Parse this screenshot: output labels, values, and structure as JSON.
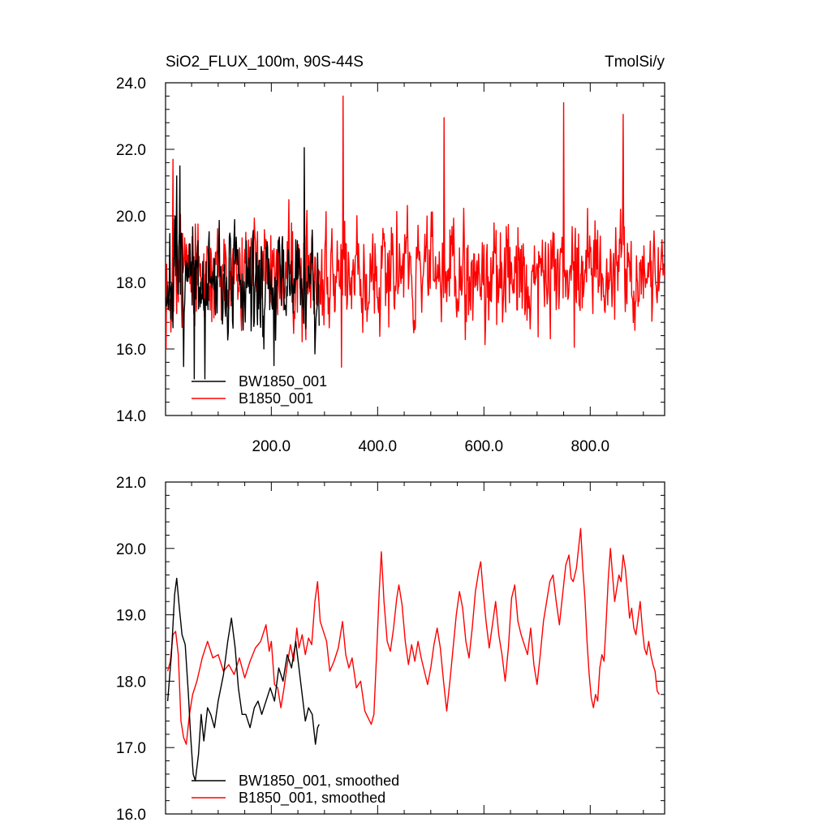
{
  "chart_data": [
    {
      "type": "line",
      "title": "SiO2_FLUX_100m, 90S-44S",
      "units": "TmolSi/y",
      "xlabel": "",
      "ylabel": "",
      "xlim": [
        1,
        940
      ],
      "ylim": [
        14.0,
        24.0
      ],
      "x_tick_labels": [
        "200.0",
        "400.0",
        "600.0",
        "800.0"
      ],
      "y_tick_labels": [
        "14.0",
        "16.0",
        "18.0",
        "20.0",
        "22.0",
        "24.0"
      ],
      "legend_position": "bottom-left",
      "series": [
        {
          "name": "BW1850_001",
          "color": "#000000",
          "x_start": 1,
          "x_end": 290,
          "mean": 17.9,
          "std": 1.05,
          "seed": 7,
          "highlights": [
            [
              22,
              21.2
            ],
            [
              28,
              21.5
            ],
            [
              55,
              15.1
            ],
            [
              75,
              15.1
            ],
            [
              205,
              15.5
            ],
            [
              262,
              22.05
            ]
          ]
        },
        {
          "name": "B1850_001",
          "color": "#ff0000",
          "x_start": 1,
          "x_end": 940,
          "mean": 18.3,
          "std": 1.0,
          "seed": 13,
          "highlights": [
            [
              15,
              21.7
            ],
            [
              335,
              23.6
            ],
            [
              332,
              15.45
            ],
            [
              525,
              22.95
            ],
            [
              750,
              23.4
            ],
            [
              770,
              16.05
            ],
            [
              862,
              23.05
            ]
          ]
        }
      ]
    },
    {
      "type": "line",
      "title": "",
      "xlabel": "",
      "ylabel": "",
      "xlim": [
        1,
        940
      ],
      "ylim": [
        16.0,
        21.0
      ],
      "x_tick_labels": [],
      "y_tick_labels": [
        "16.0",
        "17.0",
        "18.0",
        "19.0",
        "20.0",
        "21.0"
      ],
      "legend_position": "bottom-left",
      "series": [
        {
          "name": "BW1850_001, smoothed",
          "color": "#000000",
          "points": [
            [
              5,
              17.7
            ],
            [
              12,
              18.4
            ],
            [
              18,
              19.3
            ],
            [
              22,
              19.55
            ],
            [
              27,
              19.1
            ],
            [
              32,
              18.7
            ],
            [
              38,
              18.55
            ],
            [
              44,
              17.8
            ],
            [
              48,
              17.2
            ],
            [
              53,
              16.6
            ],
            [
              57,
              16.5
            ],
            [
              63,
              16.9
            ],
            [
              68,
              17.5
            ],
            [
              73,
              17.1
            ],
            [
              80,
              17.6
            ],
            [
              86,
              17.5
            ],
            [
              93,
              17.3
            ],
            [
              100,
              17.7
            ],
            [
              110,
              18.1
            ],
            [
              118,
              18.6
            ],
            [
              125,
              18.95
            ],
            [
              132,
              18.5
            ],
            [
              138,
              17.9
            ],
            [
              145,
              17.5
            ],
            [
              152,
              17.5
            ],
            [
              160,
              17.3
            ],
            [
              168,
              17.6
            ],
            [
              175,
              17.7
            ],
            [
              182,
              17.5
            ],
            [
              190,
              17.7
            ],
            [
              198,
              17.9
            ],
            [
              206,
              17.7
            ],
            [
              214,
              18.2
            ],
            [
              222,
              18.0
            ],
            [
              230,
              18.4
            ],
            [
              238,
              18.2
            ],
            [
              246,
              18.6
            ],
            [
              252,
              18.2
            ],
            [
              258,
              17.8
            ],
            [
              264,
              17.4
            ],
            [
              270,
              17.6
            ],
            [
              277,
              17.5
            ],
            [
              283,
              17.05
            ],
            [
              287,
              17.3
            ],
            [
              290,
              17.35
            ]
          ]
        },
        {
          "name": "B1850_001, smoothed",
          "color": "#ff0000",
          "points": [
            [
              5,
              18.15
            ],
            [
              10,
              18.3
            ],
            [
              15,
              18.7
            ],
            [
              20,
              18.75
            ],
            [
              25,
              18.4
            ],
            [
              30,
              17.4
            ],
            [
              35,
              17.15
            ],
            [
              40,
              17.05
            ],
            [
              46,
              17.5
            ],
            [
              52,
              17.8
            ],
            [
              60,
              18.0
            ],
            [
              70,
              18.35
            ],
            [
              80,
              18.6
            ],
            [
              90,
              18.35
            ],
            [
              100,
              18.4
            ],
            [
              110,
              18.15
            ],
            [
              120,
              18.25
            ],
            [
              130,
              18.1
            ],
            [
              140,
              18.35
            ],
            [
              150,
              18.05
            ],
            [
              160,
              18.3
            ],
            [
              170,
              18.5
            ],
            [
              180,
              18.6
            ],
            [
              190,
              18.85
            ],
            [
              196,
              18.45
            ],
            [
              200,
              18.6
            ],
            [
              206,
              17.95
            ],
            [
              212,
              17.9
            ],
            [
              218,
              17.6
            ],
            [
              224,
              17.9
            ],
            [
              230,
              18.25
            ],
            [
              236,
              18.55
            ],
            [
              242,
              18.3
            ],
            [
              248,
              18.8
            ],
            [
              252,
              18.5
            ],
            [
              258,
              18.7
            ],
            [
              264,
              18.4
            ],
            [
              270,
              18.65
            ],
            [
              276,
              18.55
            ],
            [
              282,
              19.2
            ],
            [
              287,
              19.5
            ],
            [
              292,
              18.9
            ],
            [
              298,
              18.75
            ],
            [
              304,
              18.6
            ],
            [
              310,
              18.15
            ],
            [
              318,
              18.3
            ],
            [
              326,
              18.5
            ],
            [
              334,
              18.9
            ],
            [
              340,
              18.4
            ],
            [
              346,
              18.2
            ],
            [
              352,
              18.35
            ],
            [
              360,
              17.9
            ],
            [
              368,
              18.0
            ],
            [
              376,
              17.55
            ],
            [
              382,
              17.45
            ],
            [
              388,
              17.35
            ],
            [
              393,
              17.5
            ],
            [
              398,
              18.4
            ],
            [
              403,
              19.35
            ],
            [
              407,
              19.95
            ],
            [
              412,
              19.2
            ],
            [
              418,
              18.6
            ],
            [
              424,
              18.45
            ],
            [
              430,
              18.8
            ],
            [
              436,
              19.25
            ],
            [
              440,
              19.45
            ],
            [
              446,
              19.15
            ],
            [
              452,
              18.6
            ],
            [
              458,
              18.25
            ],
            [
              464,
              18.55
            ],
            [
              470,
              18.3
            ],
            [
              476,
              18.6
            ],
            [
              482,
              18.35
            ],
            [
              488,
              18.15
            ],
            [
              494,
              17.95
            ],
            [
              500,
              18.2
            ],
            [
              506,
              18.55
            ],
            [
              512,
              18.8
            ],
            [
              518,
              18.5
            ],
            [
              524,
              18.0
            ],
            [
              530,
              17.55
            ],
            [
              536,
              18.0
            ],
            [
              542,
              18.5
            ],
            [
              548,
              19.0
            ],
            [
              554,
              19.35
            ],
            [
              560,
              19.1
            ],
            [
              566,
              18.6
            ],
            [
              572,
              18.35
            ],
            [
              578,
              18.8
            ],
            [
              584,
              19.35
            ],
            [
              590,
              19.65
            ],
            [
              594,
              19.8
            ],
            [
              598,
              19.4
            ],
            [
              604,
              18.9
            ],
            [
              610,
              18.5
            ],
            [
              616,
              18.85
            ],
            [
              622,
              19.2
            ],
            [
              628,
              18.7
            ],
            [
              634,
              18.4
            ],
            [
              640,
              18.0
            ],
            [
              646,
              18.5
            ],
            [
              652,
              19.25
            ],
            [
              658,
              19.45
            ],
            [
              664,
              18.9
            ],
            [
              670,
              18.7
            ],
            [
              676,
              18.55
            ],
            [
              682,
              18.4
            ],
            [
              688,
              18.8
            ],
            [
              694,
              18.25
            ],
            [
              700,
              17.95
            ],
            [
              706,
              18.4
            ],
            [
              712,
              18.9
            ],
            [
              718,
              19.2
            ],
            [
              724,
              19.5
            ],
            [
              730,
              19.6
            ],
            [
              736,
              19.2
            ],
            [
              742,
              18.85
            ],
            [
              748,
              19.3
            ],
            [
              754,
              19.75
            ],
            [
              760,
              19.9
            ],
            [
              764,
              19.55
            ],
            [
              768,
              19.5
            ],
            [
              774,
              19.7
            ],
            [
              778,
              20.0
            ],
            [
              782,
              20.3
            ],
            [
              786,
              19.7
            ],
            [
              790,
              19.25
            ],
            [
              794,
              18.6
            ],
            [
              798,
              18.1
            ],
            [
              802,
              17.75
            ],
            [
              806,
              17.6
            ],
            [
              810,
              17.8
            ],
            [
              814,
              17.7
            ],
            [
              818,
              18.2
            ],
            [
              822,
              18.4
            ],
            [
              826,
              18.3
            ],
            [
              830,
              18.9
            ],
            [
              834,
              19.55
            ],
            [
              838,
              20.0
            ],
            [
              842,
              19.6
            ],
            [
              846,
              19.2
            ],
            [
              850,
              19.4
            ],
            [
              854,
              19.6
            ],
            [
              858,
              19.5
            ],
            [
              862,
              19.9
            ],
            [
              866,
              19.7
            ],
            [
              870,
              19.35
            ],
            [
              874,
              18.95
            ],
            [
              878,
              19.1
            ],
            [
              882,
              18.8
            ],
            [
              886,
              18.7
            ],
            [
              890,
              18.95
            ],
            [
              894,
              19.2
            ],
            [
              898,
              18.8
            ],
            [
              902,
              18.5
            ],
            [
              906,
              18.4
            ],
            [
              910,
              18.6
            ],
            [
              914,
              18.4
            ],
            [
              918,
              18.25
            ],
            [
              922,
              18.15
            ],
            [
              926,
              17.85
            ],
            [
              930,
              17.8
            ]
          ]
        }
      ]
    }
  ]
}
